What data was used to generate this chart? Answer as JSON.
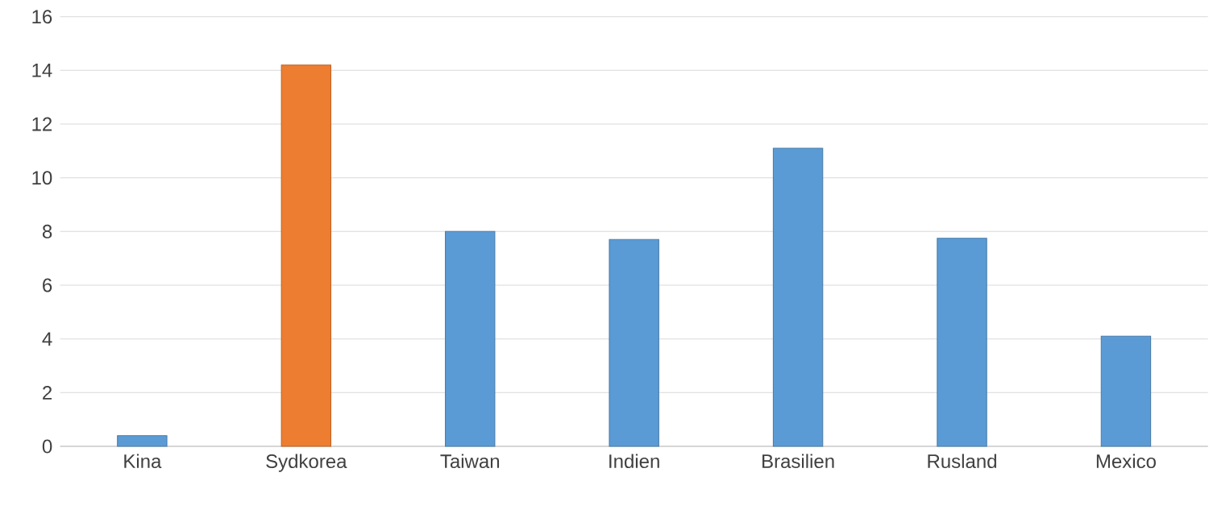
{
  "chart_data": {
    "type": "bar",
    "categories": [
      "Kina",
      "Sydkorea",
      "Taiwan",
      "Indien",
      "Brasilien",
      "Rusland",
      "Mexico"
    ],
    "values": [
      0.4,
      14.2,
      8.0,
      7.7,
      11.1,
      7.75,
      4.1
    ],
    "colors": [
      "#5b9bd5",
      "#ed7d31",
      "#5b9bd5",
      "#5b9bd5",
      "#5b9bd5",
      "#5b9bd5",
      "#5b9bd5"
    ],
    "ylim": [
      0,
      16
    ],
    "yticks": [
      0,
      2,
      4,
      6,
      8,
      10,
      12,
      14,
      16
    ],
    "grid": "y"
  }
}
